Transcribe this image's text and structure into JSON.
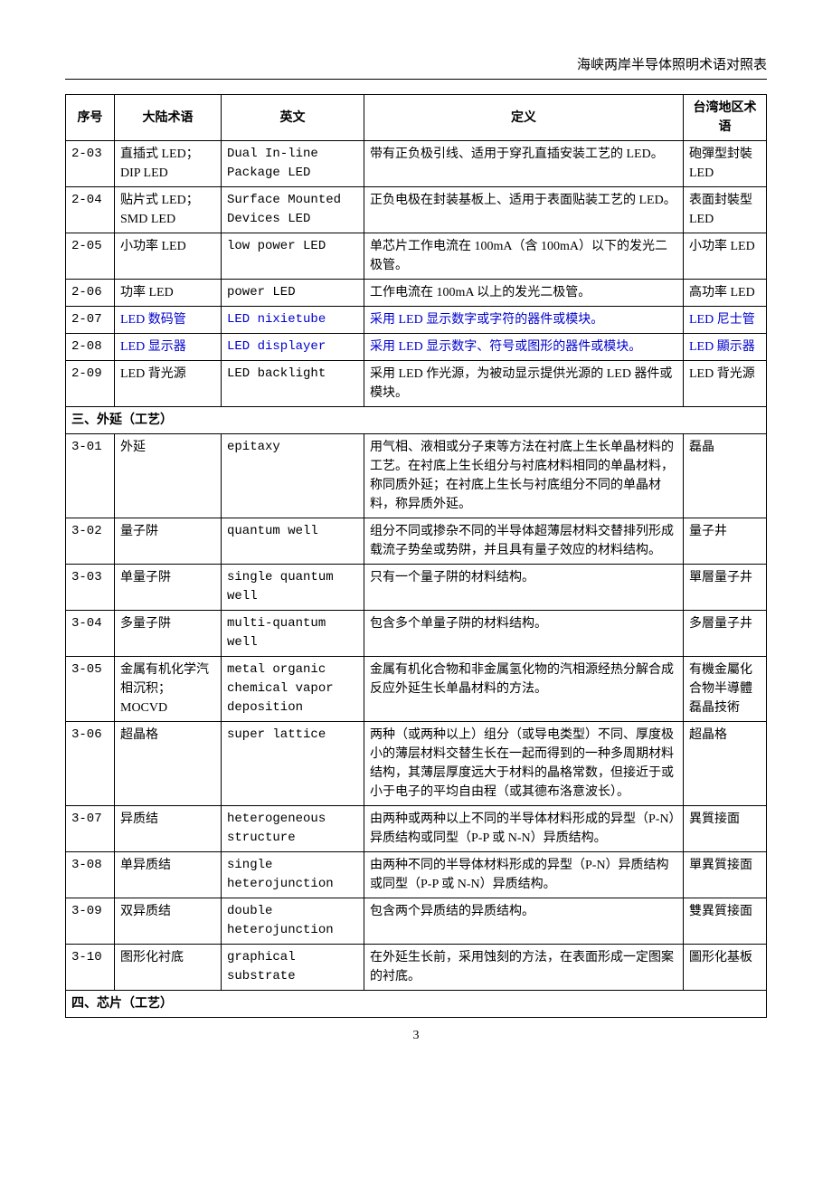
{
  "doc_title": "海峡两岸半导体照明术语对照表",
  "page_number": "3",
  "columns": {
    "seq": "序号",
    "mainland": "大陆术语",
    "english": "英文",
    "definition": "定义",
    "taiwan": "台湾地区术语"
  },
  "link_color": "#0000cc",
  "rows": [
    {
      "seq": "2-03",
      "ml": "直插式 LED；DIP LED",
      "en": "Dual In-line Package LED",
      "def": "带有正负极引线、适用于穿孔直插安装工艺的 LED。",
      "tw": "砲彈型封裝 LED"
    },
    {
      "seq": "2-04",
      "ml": "贴片式 LED；SMD LED",
      "en": "Surface Mounted Devices LED",
      "def": "正负电极在封装基板上、适用于表面贴装工艺的 LED。",
      "tw": "表面封裝型 LED"
    },
    {
      "seq": "2-05",
      "ml": "小功率 LED",
      "en": "low power LED",
      "def": "单芯片工作电流在 100mA（含 100mA）以下的发光二极管。",
      "tw": "小功率 LED"
    },
    {
      "seq": "2-06",
      "ml": "功率 LED",
      "en": "power LED",
      "def": "工作电流在 100mA 以上的发光二极管。",
      "tw": "高功率 LED"
    },
    {
      "seq": "2-07",
      "ml": "LED 数码管",
      "en": "LED nixietube",
      "def": "采用 LED 显示数字或字符的器件或模块。",
      "tw": "LED 尼士管",
      "link": true
    },
    {
      "seq": "2-08",
      "ml": "LED 显示器",
      "en": "LED displayer",
      "def": "采用 LED 显示数字、符号或图形的器件或模块。",
      "tw": "LED 顯示器",
      "link": true
    },
    {
      "seq": "2-09",
      "ml": "LED 背光源",
      "en": "LED backlight",
      "def": "采用 LED 作光源，为被动显示提供光源的 LED 器件或模块。",
      "tw": "LED 背光源"
    },
    {
      "section": "三、外延（工艺）"
    },
    {
      "seq": "3-01",
      "ml": "外延",
      "en": "epitaxy",
      "def": "用气相、液相或分子束等方法在衬底上生长单晶材料的工艺。在衬底上生长组分与衬底材料相同的单晶材料，称同质外延；在衬底上生长与衬底组分不同的单晶材料，称异质外延。",
      "tw": "磊晶"
    },
    {
      "seq": "3-02",
      "ml": "量子阱",
      "en": "quantum well",
      "def": "组分不同或掺杂不同的半导体超薄层材料交替排列形成载流子势垒或势阱，并且具有量子效应的材料结构。",
      "tw": "量子井"
    },
    {
      "seq": "3-03",
      "ml": "单量子阱",
      "en": "single quantum well",
      "def": "只有一个量子阱的材料结构。",
      "tw": "單層量子井"
    },
    {
      "seq": "3-04",
      "ml": "多量子阱",
      "en": "multi-quantum well",
      "def": "包含多个单量子阱的材料结构。",
      "tw": "多層量子井"
    },
    {
      "seq": "3-05",
      "ml": "金属有机化学汽相沉积；MOCVD",
      "en": "metal organic chemical vapor deposition",
      "def": "金属有机化合物和非金属氢化物的汽相源经热分解合成反应外延生长单晶材料的方法。",
      "tw": "有機金屬化合物半導體磊晶技術"
    },
    {
      "seq": "3-06",
      "ml": "超晶格",
      "en": "super lattice",
      "def": "两种（或两种以上）组分（或导电类型）不同、厚度极小的薄层材料交替生长在一起而得到的一种多周期材料结构，其薄层厚度远大于材料的晶格常数，但接近于或小于电子的平均自由程（或其德布洛意波长）。",
      "tw": "超晶格"
    },
    {
      "seq": "3-07",
      "ml": "异质结",
      "en": "heterogeneous structure",
      "def": "由两种或两种以上不同的半导体材料形成的异型（P-N）异质结构或同型（P-P 或 N-N）异质结构。",
      "tw": "異質接面"
    },
    {
      "seq": "3-08",
      "ml": "单异质结",
      "en": "single heterojunction",
      "def": "由两种不同的半导体材料形成的异型（P-N）异质结构或同型（P-P 或 N-N）异质结构。",
      "tw": "單異質接面"
    },
    {
      "seq": "3-09",
      "ml": "双异质结",
      "en": "double heterojunction",
      "def": "包含两个异质结的异质结构。",
      "tw": "雙異質接面"
    },
    {
      "seq": "3-10",
      "ml": "图形化衬底",
      "en": "graphical substrate",
      "def": "在外延生长前，采用蚀刻的方法，在表面形成一定图案的衬底。",
      "tw": "圖形化基板"
    },
    {
      "section": "四、芯片（工艺）"
    }
  ]
}
